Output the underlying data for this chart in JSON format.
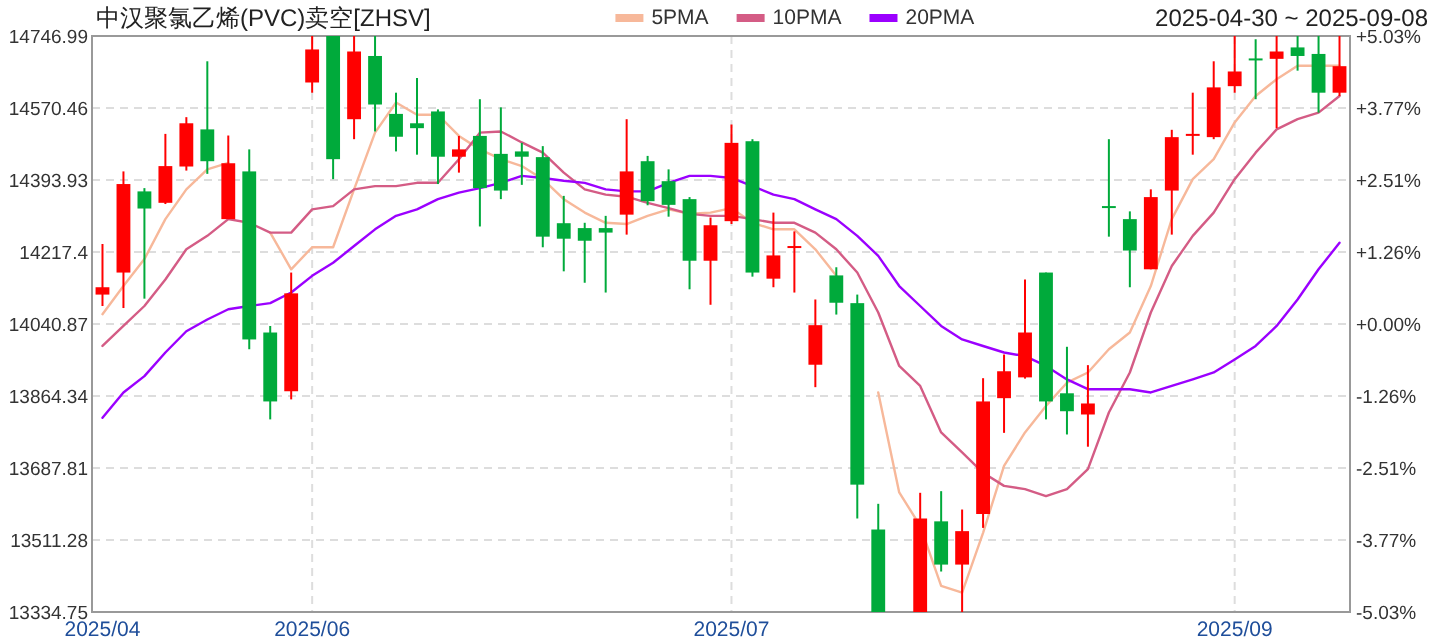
{
  "chart_data": {
    "type": "candlestick",
    "title": "中汉聚氯乙烯(PVC)卖空[ZHSV]",
    "subtitle": "2025-04-30 ~ 2025-09-08",
    "categories": [
      "2025/04",
      null,
      null,
      null,
      null,
      null,
      null,
      null,
      null,
      null,
      "2025/06",
      null,
      null,
      null,
      null,
      null,
      null,
      null,
      null,
      null,
      null,
      null,
      null,
      null,
      null,
      null,
      null,
      null,
      null,
      null,
      "2025/07",
      null,
      null,
      null,
      null,
      null,
      null,
      null,
      null,
      null,
      null,
      null,
      null,
      null,
      null,
      null,
      null,
      null,
      null,
      null,
      null,
      null,
      null,
      null,
      "2025/09",
      null,
      null,
      null,
      null,
      null
    ],
    "ohlc": [
      [
        14113,
        14237,
        14085,
        14131
      ],
      [
        14167,
        14415,
        14080,
        14384
      ],
      [
        14366,
        14374,
        14103,
        14324
      ],
      [
        14338,
        14507,
        14335,
        14428
      ],
      [
        14427,
        14548,
        14417,
        14533
      ],
      [
        14518,
        14685,
        14409,
        14440
      ],
      [
        14298,
        14503,
        14298,
        14435
      ],
      [
        14415,
        14469,
        13979,
        14003
      ],
      [
        14020,
        14036,
        13807,
        13851
      ],
      [
        13876,
        14167,
        13856,
        14116
      ],
      [
        14633,
        14746.99,
        14608,
        14714
      ],
      [
        14746.99,
        14746.99,
        14396,
        14445
      ],
      [
        14543,
        14746.99,
        14494,
        14709
      ],
      [
        14698,
        14746.99,
        14513,
        14579
      ],
      [
        14556,
        14608,
        14464,
        14500
      ],
      [
        14533,
        14644,
        14456,
        14521
      ],
      [
        14562,
        14567,
        14384,
        14451
      ],
      [
        14451,
        14502,
        14412,
        14469
      ],
      [
        14502,
        14592,
        14280,
        14374
      ],
      [
        14458,
        14572,
        14347,
        14368
      ],
      [
        14464,
        14485,
        14382,
        14451
      ],
      [
        14450,
        14477,
        14229,
        14255
      ],
      [
        14288,
        14355,
        14170,
        14250
      ],
      [
        14276,
        14289,
        14142,
        14245
      ],
      [
        14276,
        14306,
        14118,
        14265
      ],
      [
        14309,
        14543,
        14260,
        14415
      ],
      [
        14440,
        14453,
        14332,
        14342
      ],
      [
        14391,
        14420,
        14304,
        14333
      ],
      [
        14347,
        14352,
        14126,
        14196
      ],
      [
        14196,
        14302,
        14088,
        14283
      ],
      [
        14293,
        14530,
        14286,
        14485
      ],
      [
        14489,
        14494,
        14157,
        14167
      ],
      [
        14152,
        14314,
        14131,
        14209
      ],
      [
        14230,
        14268,
        14118,
        14232
      ],
      [
        13941,
        14101,
        13886,
        14038
      ],
      [
        14160,
        14180,
        14064,
        14093
      ],
      [
        14092,
        14113,
        13564,
        13647
      ],
      [
        13537,
        13600,
        13334.75,
        13334.75
      ],
      null,
      [
        13334.75,
        13627,
        13334.75,
        13564
      ],
      [
        13557,
        13631,
        13434,
        13451
      ],
      [
        13451,
        13586,
        13334.75,
        13533
      ],
      [
        13575,
        13908,
        13541,
        13851
      ],
      [
        13859,
        13966,
        13774,
        13925
      ],
      [
        13910,
        14150,
        13907,
        14020
      ],
      [
        14167,
        14167,
        13807,
        13851
      ],
      [
        13871,
        13985,
        13770,
        13827
      ],
      [
        13819,
        13940,
        13740,
        13846
      ],
      [
        14330,
        14494,
        14255,
        14329
      ],
      [
        14298,
        14317,
        14131,
        14221
      ],
      [
        14175,
        14371,
        14175,
        14352
      ],
      [
        14368,
        14517,
        14260,
        14499
      ],
      [
        14505,
        14608,
        14456,
        14507
      ],
      [
        14499,
        14685,
        14494,
        14621
      ],
      [
        14624,
        14746.99,
        14608,
        14660
      ],
      [
        14692,
        14739,
        14592,
        14690
      ],
      [
        14691,
        14746.99,
        14521,
        14709
      ],
      [
        14719,
        14746.99,
        14662,
        14698
      ],
      [
        14703,
        14746.99,
        14559,
        14608
      ],
      [
        14608,
        14746.99,
        14600,
        14673
      ]
    ],
    "series": [
      {
        "name": "5PMA",
        "type": "line",
        "color": "#f7b89a",
        "values": [
          14065,
          14134,
          14200,
          14298,
          14371,
          14420,
          14436,
          null,
          14265,
          14175,
          14229,
          14229,
          14371,
          14510,
          14584,
          14554,
          14554,
          14502,
          14469,
          14445,
          14428,
          14396,
          14347,
          14314,
          14289,
          14286,
          14306,
          14322,
          14311,
          14314,
          14325,
          14289,
          14273,
          14273,
          14224,
          14159,
          null,
          13873,
          13628,
          13546,
          13399,
          13382,
          13529,
          13693,
          13775,
          13840,
          13897,
          13922,
          13979,
          14020,
          14134,
          14298,
          14396,
          14445,
          14535,
          14600,
          14641,
          14674,
          14674,
          14674
        ]
      },
      {
        "name": "10PMA",
        "type": "line",
        "color": "#d45c85",
        "values": [
          13987,
          14036,
          14085,
          14150,
          14224,
          14257,
          14298,
          14289,
          14265,
          14265,
          14322,
          14330,
          14371,
          14379,
          14379,
          14387,
          14387,
          14445,
          14510,
          14513,
          14486,
          14461,
          14412,
          14371,
          14358,
          14353,
          14338,
          14325,
          14311,
          14306,
          14306,
          14298,
          14289,
          14289,
          14265,
          14224,
          14167,
          14069,
          13938,
          13889,
          13775,
          13726,
          13676,
          13644,
          13636,
          13619,
          13636,
          13685,
          13824,
          13922,
          14069,
          14183,
          14257,
          14314,
          14396,
          14461,
          14518,
          14543,
          14559,
          14600
        ]
      },
      {
        "name": "20PMA",
        "type": "line",
        "color": "#9b00ff",
        "values": [
          13811,
          13873,
          13913,
          13971,
          14023,
          14052,
          14077,
          14085,
          14092,
          14118,
          14159,
          14191,
          14232,
          14273,
          14306,
          14322,
          14347,
          14363,
          14374,
          14387,
          14404,
          14399,
          14392,
          14387,
          14371,
          14366,
          14366,
          14387,
          14404,
          14404,
          14399,
          14379,
          14358,
          14347,
          14322,
          14298,
          14257,
          14208,
          14134,
          14085,
          14036,
          14003,
          13987,
          13971,
          13962,
          13938,
          13905,
          13881,
          13881,
          13881,
          13873,
          13889,
          13905,
          13922,
          13954,
          13987,
          14036,
          14101,
          14175,
          14240
        ]
      }
    ],
    "ylim": [
      13334.75,
      14746.99
    ],
    "yticks": [
      14746.99,
      14570.46,
      14393.93,
      14217.4,
      14040.87,
      13864.34,
      13687.81,
      13511.28,
      13334.75
    ],
    "y2lim": [
      -5.03,
      5.03
    ],
    "y2ticks": [
      {
        "value": 5.03,
        "label": "+5.03%"
      },
      {
        "value": 3.77,
        "label": "+3.77%"
      },
      {
        "value": 2.51,
        "label": "+2.51%"
      },
      {
        "value": 1.26,
        "label": "+1.26%"
      },
      {
        "value": 0,
        "label": "+0.00%"
      },
      {
        "value": -1.26,
        "label": "-1.26%"
      },
      {
        "value": -2.51,
        "label": "-2.51%"
      },
      {
        "value": -3.77,
        "label": "-3.77%"
      },
      {
        "value": -5.03,
        "label": "-5.03%"
      }
    ],
    "grid": true,
    "legend": "top"
  }
}
